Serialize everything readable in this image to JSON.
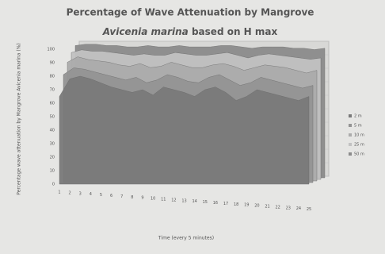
{
  "chart_data": {
    "type": "area3d",
    "title": "Percentage of Wave Attenuation by Mangrove",
    "subtitle_italic": "Avicenia marina",
    "subtitle_rest": "based on H max",
    "ylabel": "Percentage wave attenuation by Mangrove Avicenia marina (%)",
    "xlabel": "Time (every 5 minutes)",
    "categories": [
      "1",
      "2",
      "3",
      "4",
      "5",
      "6",
      "7",
      "8",
      "9",
      "10",
      "11",
      "12",
      "13",
      "14",
      "15",
      "16",
      "17",
      "18",
      "19",
      "20",
      "21",
      "22",
      "23",
      "24",
      "25"
    ],
    "series": [
      {
        "name": "2 m",
        "color": "#7a7a7a",
        "values": [
          65,
          78,
          80,
          78,
          75,
          72,
          70,
          68,
          70,
          66,
          72,
          70,
          68,
          65,
          70,
          72,
          68,
          62,
          65,
          70,
          68,
          66,
          64,
          62,
          65
        ]
      },
      {
        "name": "5 m",
        "color": "#949494",
        "values": [
          80,
          85,
          84,
          82,
          80,
          78,
          76,
          78,
          74,
          76,
          80,
          78,
          75,
          74,
          78,
          80,
          76,
          72,
          74,
          78,
          76,
          74,
          72,
          70,
          72
        ]
      },
      {
        "name": "10 m",
        "color": "#acacac",
        "values": [
          88,
          92,
          90,
          89,
          88,
          86,
          85,
          87,
          84,
          85,
          88,
          86,
          84,
          84,
          86,
          87,
          85,
          82,
          84,
          86,
          85,
          84,
          82,
          80,
          82
        ]
      },
      {
        "name": "25 m",
        "color": "#c2c2c2",
        "values": [
          94,
          96,
          95,
          95,
          94,
          93,
          92,
          93,
          92,
          92,
          94,
          93,
          92,
          92,
          93,
          94,
          92,
          90,
          92,
          93,
          92,
          91,
          90,
          89,
          90
        ]
      },
      {
        "name": "50 m",
        "color": "#8c8c8c",
        "values": [
          98,
          99,
          99,
          98,
          98,
          97,
          97,
          98,
          97,
          97,
          98,
          97,
          97,
          97,
          98,
          98,
          97,
          96,
          97,
          97,
          97,
          96,
          96,
          95,
          96
        ]
      }
    ],
    "ylim": [
      0,
      100
    ],
    "yticks": [
      0,
      10,
      20,
      30,
      40,
      50,
      60,
      70,
      80,
      90,
      100
    ]
  }
}
